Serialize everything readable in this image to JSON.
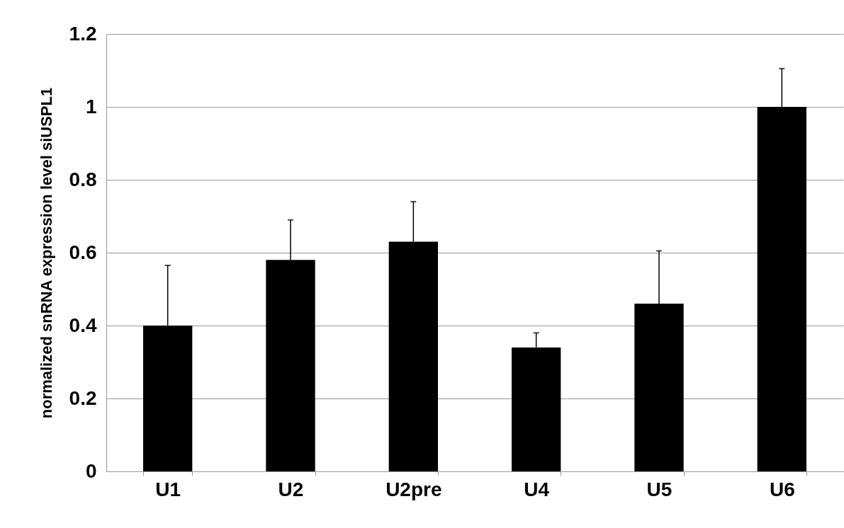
{
  "chart_data": {
    "type": "bar",
    "ylabel": "normalized snRNA expression level siUSPL1",
    "categories": [
      "U1",
      "U2",
      "U2pre",
      "U4",
      "U5",
      "U6"
    ],
    "values": [
      0.4,
      0.58,
      0.63,
      0.34,
      0.46,
      1.0
    ],
    "errors": [
      [
        0.4,
        0.565
      ],
      [
        0.58,
        0.69
      ],
      [
        0.63,
        0.74
      ],
      [
        0.34,
        0.38
      ],
      [
        0.46,
        0.605
      ],
      [
        1.0,
        1.105
      ]
    ],
    "color": "#000000",
    "ylim": [
      0,
      1.2
    ],
    "yticks": [
      0,
      0.2,
      0.4,
      0.6,
      0.8,
      1,
      1.2
    ],
    "grid": "y"
  }
}
